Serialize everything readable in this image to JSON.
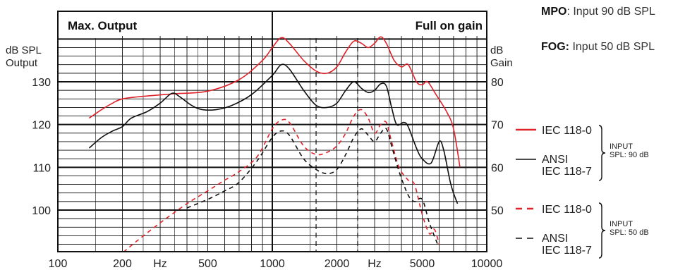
{
  "notes": {
    "mpo_key": "MPO",
    "mpo_text": ": Input 90 dB SPL",
    "fog_key": "FOG:",
    "fog_text": " Input 50 dB SPL"
  },
  "chart_data": {
    "type": "line",
    "title_left": "Max. Output",
    "title_right": "Full on gain",
    "x_scale": "log",
    "xlim": [
      100,
      10000
    ],
    "x_ticks": [
      {
        "value": 100,
        "label": "100"
      },
      {
        "value": 200,
        "label": "200"
      },
      {
        "value": 500,
        "label": "500"
      },
      {
        "value": 1000,
        "label": "1000"
      },
      {
        "value": 2000,
        "label": "2000"
      },
      {
        "value": 5000,
        "label": "5000"
      },
      {
        "value": 10000,
        "label": "10000"
      }
    ],
    "x_unit_labels": [
      {
        "value": 300,
        "label": "Hz"
      },
      {
        "value": 3000,
        "label": "Hz"
      }
    ],
    "left_axis": {
      "label_line1": "dB SPL",
      "label_line2": "Output",
      "ylim": [
        92,
        140
      ],
      "ticks": [
        100,
        110,
        120,
        130
      ]
    },
    "right_axis": {
      "label_line1": "dB",
      "label_line2": "Gain",
      "ticks": [
        50,
        60,
        70,
        80
      ],
      "offset_from_left": -50
    },
    "dashed_verticals": [
      1600,
      2500
    ],
    "grid": true,
    "series": [
      {
        "name": "IEC 118-0",
        "color": "#e0232b",
        "dash": "solid",
        "group": "INPUT SPL: 90 dB",
        "points": [
          [
            140,
            121.5
          ],
          [
            160,
            123.5
          ],
          [
            180,
            125
          ],
          [
            200,
            126
          ],
          [
            250,
            126.6
          ],
          [
            350,
            127.2
          ],
          [
            500,
            127.8
          ],
          [
            700,
            130.5
          ],
          [
            900,
            135
          ],
          [
            1000,
            138
          ],
          [
            1100,
            140.3
          ],
          [
            1200,
            139
          ],
          [
            1400,
            135
          ],
          [
            1600,
            132.5
          ],
          [
            1800,
            132
          ],
          [
            2000,
            133.5
          ],
          [
            2200,
            137
          ],
          [
            2400,
            139.5
          ],
          [
            2600,
            139
          ],
          [
            2800,
            138
          ],
          [
            3000,
            139
          ],
          [
            3200,
            140.5
          ],
          [
            3400,
            139
          ],
          [
            3700,
            135
          ],
          [
            4000,
            133.5
          ],
          [
            4300,
            134
          ],
          [
            4700,
            130
          ],
          [
            5000,
            129.3
          ],
          [
            5300,
            130
          ],
          [
            5800,
            127
          ],
          [
            6500,
            123
          ],
          [
            7000,
            119
          ],
          [
            7500,
            110
          ]
        ]
      },
      {
        "name": "ANSI IEC 118-7",
        "color": "#111111",
        "dash": "solid",
        "group": "INPUT SPL: 90 dB",
        "points": [
          [
            140,
            114.5
          ],
          [
            160,
            117
          ],
          [
            180,
            118.5
          ],
          [
            200,
            119.5
          ],
          [
            220,
            121.5
          ],
          [
            260,
            123
          ],
          [
            300,
            125
          ],
          [
            340,
            127.3
          ],
          [
            370,
            126.5
          ],
          [
            420,
            124.5
          ],
          [
            470,
            123.5
          ],
          [
            550,
            123.5
          ],
          [
            650,
            124.5
          ],
          [
            800,
            127
          ],
          [
            1000,
            131.5
          ],
          [
            1100,
            134
          ],
          [
            1200,
            133
          ],
          [
            1400,
            128
          ],
          [
            1600,
            124.5
          ],
          [
            1800,
            124
          ],
          [
            2000,
            125
          ],
          [
            2200,
            128
          ],
          [
            2400,
            130
          ],
          [
            2600,
            128.5
          ],
          [
            2800,
            127.5
          ],
          [
            3000,
            128
          ],
          [
            3200,
            129.5
          ],
          [
            3400,
            129
          ],
          [
            3600,
            124
          ],
          [
            3800,
            120
          ],
          [
            4100,
            120.5
          ],
          [
            4300,
            119.5
          ],
          [
            4700,
            114.5
          ],
          [
            5000,
            112
          ],
          [
            5500,
            111
          ],
          [
            6000,
            116
          ],
          [
            6300,
            114
          ],
          [
            6800,
            106
          ],
          [
            7300,
            101.5
          ]
        ]
      },
      {
        "name": "IEC 118-0",
        "color": "#e0232b",
        "dash": "dashed",
        "group": "INPUT SPL: 50 dB",
        "points": [
          [
            190,
            89
          ],
          [
            230,
            92.5
          ],
          [
            300,
            97
          ],
          [
            400,
            101.5
          ],
          [
            500,
            104.5
          ],
          [
            600,
            107
          ],
          [
            700,
            109
          ],
          [
            850,
            112.5
          ],
          [
            1000,
            119
          ],
          [
            1100,
            121
          ],
          [
            1200,
            120.5
          ],
          [
            1400,
            115
          ],
          [
            1600,
            113
          ],
          [
            1800,
            113.5
          ],
          [
            2000,
            115
          ],
          [
            2200,
            118
          ],
          [
            2400,
            122
          ],
          [
            2600,
            123.5
          ],
          [
            2800,
            121.5
          ],
          [
            3000,
            118
          ],
          [
            3200,
            120
          ],
          [
            3400,
            120.5
          ],
          [
            3600,
            116
          ],
          [
            3900,
            110
          ],
          [
            4300,
            107
          ],
          [
            4600,
            106
          ],
          [
            5000,
            99
          ],
          [
            5400,
            94.5
          ],
          [
            5700,
            95.5
          ],
          [
            6000,
            92
          ]
        ]
      },
      {
        "name": "ANSI IEC 118-7",
        "color": "#111111",
        "dash": "dashed",
        "group": "INPUT SPL: 50 dB",
        "points": [
          [
            400,
            100.5
          ],
          [
            500,
            102.5
          ],
          [
            600,
            104.5
          ],
          [
            700,
            106.5
          ],
          [
            850,
            111.5
          ],
          [
            1000,
            117
          ],
          [
            1100,
            118.5
          ],
          [
            1200,
            117.5
          ],
          [
            1400,
            112
          ],
          [
            1600,
            109.5
          ],
          [
            1800,
            108.5
          ],
          [
            2000,
            109.5
          ],
          [
            2200,
            113
          ],
          [
            2400,
            117
          ],
          [
            2600,
            119
          ],
          [
            2800,
            117.5
          ],
          [
            3000,
            116
          ],
          [
            3200,
            118
          ],
          [
            3400,
            119
          ],
          [
            3600,
            115
          ],
          [
            3900,
            109
          ],
          [
            4300,
            103.5
          ],
          [
            4600,
            102
          ],
          [
            5000,
            102.5
          ],
          [
            5400,
            97
          ],
          [
            5900,
            92
          ]
        ]
      }
    ]
  },
  "legend": {
    "items": [
      {
        "line1": "IEC 118-0",
        "line2": "",
        "color": "#e0232b",
        "dash": "solid"
      },
      {
        "line1": "ANSI",
        "line2": "IEC 118-7",
        "color": "#111111",
        "dash": "solid"
      },
      {
        "line1": "IEC 118-0",
        "line2": "",
        "color": "#e0232b",
        "dash": "dashed"
      },
      {
        "line1": "ANSI",
        "line2": "IEC 118-7",
        "color": "#111111",
        "dash": "dashed"
      }
    ],
    "groups": [
      {
        "line1": "INPUT",
        "line2": "SPL: 90 dB"
      },
      {
        "line1": "INPUT",
        "line2": "SPL: 50 dB"
      }
    ]
  }
}
